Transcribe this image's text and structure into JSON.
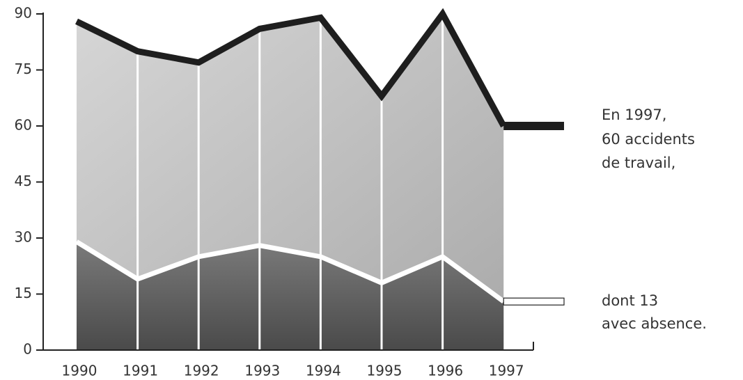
{
  "chart_data": {
    "type": "line",
    "categories": [
      "1990",
      "1991",
      "1992",
      "1993",
      "1994",
      "1995",
      "1996",
      "1997"
    ],
    "series": [
      {
        "color": "#1e1e1e",
        "values": [
          88,
          80,
          77,
          86,
          89,
          68,
          90,
          60
        ]
      },
      {
        "color": "#ffffff",
        "values": [
          29,
          19,
          25,
          28,
          25,
          18,
          25,
          13
        ]
      }
    ],
    "ylim": [
      0,
      90
    ],
    "yticks": [
      0,
      15,
      30,
      45,
      60,
      75,
      90
    ],
    "annotations": [
      [
        "En 1997,",
        "60 accidents",
        "de travail,"
      ],
      [
        "dont 13",
        "avec absence."
      ]
    ]
  }
}
